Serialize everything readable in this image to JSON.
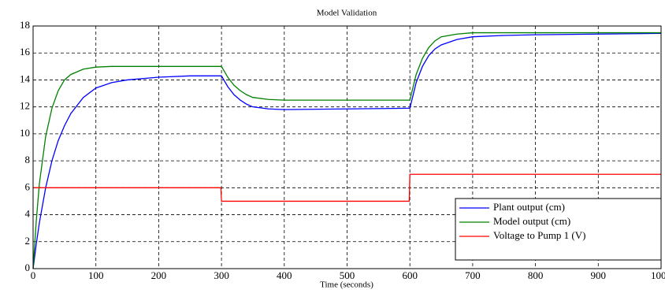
{
  "chart_data": {
    "type": "line",
    "title": "Model Validation",
    "x_label": "Time (seconds)",
    "x": [
      0,
      5,
      10,
      20,
      30,
      40,
      50,
      60,
      80,
      100,
      125,
      150,
      200,
      250,
      299,
      300,
      310,
      320,
      330,
      340,
      350,
      375,
      400,
      500,
      599,
      600,
      610,
      620,
      630,
      640,
      650,
      675,
      700,
      750,
      800,
      900,
      1000
    ],
    "series": [
      {
        "name": "Plant output (cm)",
        "color": "#0000ff",
        "values": [
          0,
          1.8,
          3.4,
          6.0,
          8.0,
          9.5,
          10.6,
          11.5,
          12.7,
          13.4,
          13.8,
          14.0,
          14.2,
          14.3,
          14.3,
          14.3,
          13.5,
          12.9,
          12.5,
          12.2,
          12.0,
          11.85,
          11.8,
          11.85,
          11.9,
          11.9,
          13.8,
          15.0,
          15.8,
          16.3,
          16.6,
          17.0,
          17.2,
          17.3,
          17.35,
          17.4,
          17.45
        ]
      },
      {
        "name": "Model output (cm)",
        "color": "#008000",
        "values": [
          0,
          3.5,
          6.3,
          9.8,
          11.9,
          13.2,
          14.0,
          14.4,
          14.8,
          14.95,
          15,
          15,
          15,
          15,
          15,
          15,
          14.2,
          13.6,
          13.2,
          12.9,
          12.7,
          12.55,
          12.5,
          12.5,
          12.5,
          12.5,
          14.4,
          15.6,
          16.4,
          16.9,
          17.2,
          17.4,
          17.5,
          17.5,
          17.5,
          17.5,
          17.5
        ]
      },
      {
        "name": "Voltage to Pump 1 (V)",
        "color": "#ff0000",
        "values": [
          6,
          6,
          6,
          6,
          6,
          6,
          6,
          6,
          6,
          6,
          6,
          6,
          6,
          6,
          6,
          5,
          5,
          5,
          5,
          5,
          5,
          5,
          5,
          5,
          5,
          7,
          7,
          7,
          7,
          7,
          7,
          7,
          7,
          7,
          7,
          7,
          7
        ]
      }
    ],
    "xlim": [
      0,
      1000
    ],
    "xticks": [
      0,
      100,
      200,
      300,
      400,
      500,
      600,
      700,
      800,
      900,
      1000
    ],
    "ylim": [
      0,
      18
    ],
    "yticks": [
      0,
      2,
      4,
      6,
      8,
      10,
      12,
      14,
      16,
      18
    ],
    "grid": true,
    "legend": "lower right"
  }
}
